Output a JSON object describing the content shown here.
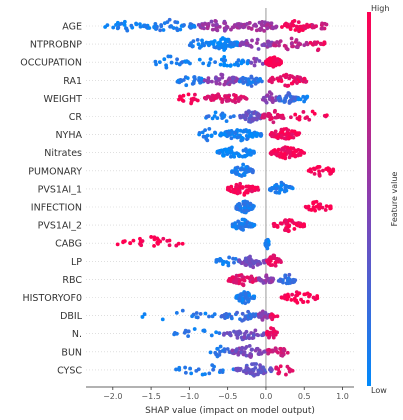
{
  "chart_data": {
    "type": "scatter",
    "subtype": "shap-beeswarm",
    "xlabel": "SHAP value (impact on model output)",
    "xlim": [
      -2.35,
      1.15
    ],
    "xticks": [
      -2.0,
      -1.5,
      -1.0,
      -0.5,
      0.0,
      0.5,
      1.0
    ],
    "xtick_labels": [
      "−2.0",
      "−1.5",
      "−1.0",
      "−0.5",
      "0.0",
      "0.5",
      "1.0"
    ],
    "grid": false,
    "zero_line": true,
    "colorbar": {
      "label": "Feature value",
      "high_label": "High",
      "low_label": "Low",
      "colors": [
        "#008afb",
        "#ff0051"
      ],
      "position": "right"
    },
    "features": [
      {
        "name": "AGE",
        "clusters": [
          {
            "range": [
              -2.1,
              -1.6
            ],
            "fv": 0.05,
            "n": 20
          },
          {
            "range": [
              -1.6,
              -0.9
            ],
            "fv": 0.1,
            "n": 45
          },
          {
            "range": [
              -0.9,
              -0.3
            ],
            "fv": 0.55,
            "n": 55
          },
          {
            "range": [
              -0.3,
              0.15
            ],
            "fv": 0.6,
            "n": 45
          },
          {
            "range": [
              0.2,
              0.6
            ],
            "fv": 0.95,
            "n": 40
          },
          {
            "range": [
              0.6,
              0.8
            ],
            "fv": 0.8,
            "n": 12
          }
        ]
      },
      {
        "name": "NTPROBNP",
        "clusters": [
          {
            "range": [
              -1.0,
              -0.75
            ],
            "fv": 0.1,
            "n": 15
          },
          {
            "range": [
              -0.75,
              -0.35
            ],
            "fv": 0.05,
            "n": 70
          },
          {
            "range": [
              -0.35,
              0.1
            ],
            "fv": 0.5,
            "n": 35
          },
          {
            "range": [
              0.1,
              0.55
            ],
            "fv": 0.7,
            "n": 30
          },
          {
            "range": [
              0.55,
              0.8
            ],
            "fv": 0.9,
            "n": 15
          }
        ]
      },
      {
        "name": "OCCUPATION",
        "clusters": [
          {
            "range": [
              -1.5,
              -1.05
            ],
            "fv": 0.1,
            "n": 15
          },
          {
            "range": [
              -1.05,
              -0.2
            ],
            "fv": 0.05,
            "n": 35
          },
          {
            "range": [
              -0.2,
              0.0
            ],
            "fv": 0.45,
            "n": 10
          },
          {
            "range": [
              0.0,
              0.2
            ],
            "fv": 1.0,
            "n": 85
          }
        ]
      },
      {
        "name": "RA1",
        "clusters": [
          {
            "range": [
              -1.2,
              -0.8
            ],
            "fv": 0.1,
            "n": 30
          },
          {
            "range": [
              -0.8,
              -0.35
            ],
            "fv": 0.5,
            "n": 45
          },
          {
            "range": [
              -0.35,
              -0.05
            ],
            "fv": 0.15,
            "n": 35
          },
          {
            "range": [
              0.0,
              0.55
            ],
            "fv": 0.9,
            "n": 45
          }
        ]
      },
      {
        "name": "WEIGHT",
        "clusters": [
          {
            "range": [
              -1.15,
              -0.85
            ],
            "fv": 0.95,
            "n": 15
          },
          {
            "range": [
              -0.8,
              -0.25
            ],
            "fv": 0.85,
            "n": 55
          },
          {
            "range": [
              -0.05,
              0.15
            ],
            "fv": 0.5,
            "n": 20
          },
          {
            "range": [
              0.15,
              0.4
            ],
            "fv": 0.2,
            "n": 35
          },
          {
            "range": [
              0.4,
              0.55
            ],
            "fv": 0.1,
            "n": 10
          }
        ]
      },
      {
        "name": "CR",
        "clusters": [
          {
            "range": [
              -0.8,
              -0.35
            ],
            "fv": 0.1,
            "n": 20
          },
          {
            "range": [
              -0.35,
              -0.05
            ],
            "fv": 0.35,
            "n": 55
          },
          {
            "range": [
              -0.05,
              0.25
            ],
            "fv": 0.85,
            "n": 30
          },
          {
            "range": [
              0.3,
              0.8
            ],
            "fv": 0.95,
            "n": 15
          }
        ]
      },
      {
        "name": "NYHA",
        "clusters": [
          {
            "range": [
              -0.9,
              -0.6
            ],
            "fv": 0.1,
            "n": 15
          },
          {
            "range": [
              -0.6,
              -0.05
            ],
            "fv": 0.05,
            "n": 70
          },
          {
            "range": [
              0.05,
              0.45
            ],
            "fv": 0.95,
            "n": 55
          }
        ]
      },
      {
        "name": "Nitrates",
        "clusters": [
          {
            "range": [
              -0.65,
              -0.15
            ],
            "fv": 0.05,
            "n": 60
          },
          {
            "range": [
              0.05,
              0.5
            ],
            "fv": 0.95,
            "n": 65
          }
        ]
      },
      {
        "name": "PUMONARY",
        "clusters": [
          {
            "range": [
              -0.45,
              -0.15
            ],
            "fv": 0.1,
            "n": 45
          },
          {
            "range": [
              0.55,
              0.9
            ],
            "fv": 1.0,
            "n": 25
          }
        ]
      },
      {
        "name": "PVS1AI_1",
        "clusters": [
          {
            "range": [
              -0.5,
              -0.1
            ],
            "fv": 0.95,
            "n": 60
          },
          {
            "range": [
              0.05,
              0.35
            ],
            "fv": 0.1,
            "n": 40
          }
        ]
      },
      {
        "name": "INFECTION",
        "clusters": [
          {
            "range": [
              -0.4,
              -0.15
            ],
            "fv": 0.1,
            "n": 50
          },
          {
            "range": [
              0.5,
              0.85
            ],
            "fv": 1.0,
            "n": 25
          }
        ]
      },
      {
        "name": "PVS1AI_2",
        "clusters": [
          {
            "range": [
              -0.45,
              -0.15
            ],
            "fv": 0.1,
            "n": 45
          },
          {
            "range": [
              0.1,
              0.5
            ],
            "fv": 0.95,
            "n": 50
          }
        ]
      },
      {
        "name": "CABG",
        "clusters": [
          {
            "range": [
              -1.95,
              -1.05
            ],
            "fv": 1.0,
            "n": 30
          },
          {
            "range": [
              -0.01,
              0.04
            ],
            "fv": 0.05,
            "n": 25
          }
        ]
      },
      {
        "name": "LP",
        "clusters": [
          {
            "range": [
              -0.65,
              -0.35
            ],
            "fv": 0.1,
            "n": 20
          },
          {
            "range": [
              -0.35,
              0.0
            ],
            "fv": 0.4,
            "n": 40
          },
          {
            "range": [
              0.0,
              0.2
            ],
            "fv": 0.9,
            "n": 30
          }
        ]
      },
      {
        "name": "RBC",
        "clusters": [
          {
            "range": [
              -0.5,
              -0.1
            ],
            "fv": 0.85,
            "n": 50
          },
          {
            "range": [
              -0.1,
              0.1
            ],
            "fv": 0.5,
            "n": 25
          },
          {
            "range": [
              0.15,
              0.4
            ],
            "fv": 0.2,
            "n": 25
          }
        ]
      },
      {
        "name": "HISTORYOF0",
        "clusters": [
          {
            "range": [
              -0.4,
              -0.15
            ],
            "fv": 0.1,
            "n": 50
          },
          {
            "range": [
              0.2,
              0.7
            ],
            "fv": 1.0,
            "n": 35
          }
        ]
      },
      {
        "name": "DBIL",
        "clusters": [
          {
            "range": [
              -1.7,
              -0.6
            ],
            "fv": 0.1,
            "n": 15
          },
          {
            "range": [
              -0.6,
              -0.1
            ],
            "fv": 0.2,
            "n": 35
          },
          {
            "range": [
              -0.1,
              0.05
            ],
            "fv": 0.5,
            "n": 20
          },
          {
            "range": [
              0.05,
              0.15
            ],
            "fv": 0.9,
            "n": 10
          }
        ]
      },
      {
        "name": "N.",
        "clusters": [
          {
            "range": [
              -1.2,
              -0.55
            ],
            "fv": 0.1,
            "n": 15
          },
          {
            "range": [
              -0.55,
              0.0
            ],
            "fv": 0.4,
            "n": 40
          },
          {
            "range": [
              0.0,
              0.15
            ],
            "fv": 0.9,
            "n": 25
          }
        ]
      },
      {
        "name": "BUN",
        "clusters": [
          {
            "range": [
              -0.75,
              -0.45
            ],
            "fv": 0.15,
            "n": 15
          },
          {
            "range": [
              -0.45,
              0.0
            ],
            "fv": 0.45,
            "n": 45
          },
          {
            "range": [
              0.0,
              0.3
            ],
            "fv": 0.8,
            "n": 25
          }
        ]
      },
      {
        "name": "CYSC",
        "clusters": [
          {
            "range": [
              -1.2,
              -0.4
            ],
            "fv": 0.1,
            "n": 20
          },
          {
            "range": [
              -0.4,
              0.1
            ],
            "fv": 0.35,
            "n": 55
          },
          {
            "range": [
              0.1,
              0.35
            ],
            "fv": 0.9,
            "n": 15
          }
        ]
      }
    ]
  }
}
